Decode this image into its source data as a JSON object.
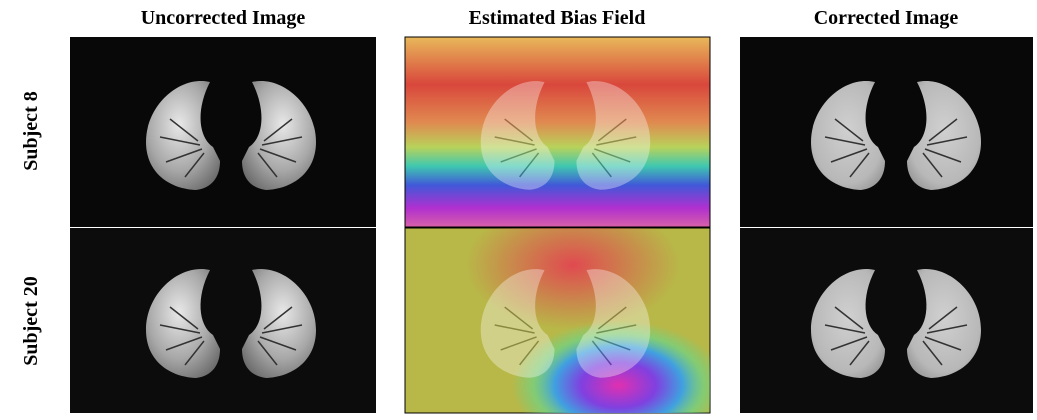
{
  "columns": [
    "Uncorrected Image",
    "Estimated Bias Field",
    "Corrected Image"
  ],
  "rows": [
    "Subject 8",
    "Subject 20"
  ]
}
